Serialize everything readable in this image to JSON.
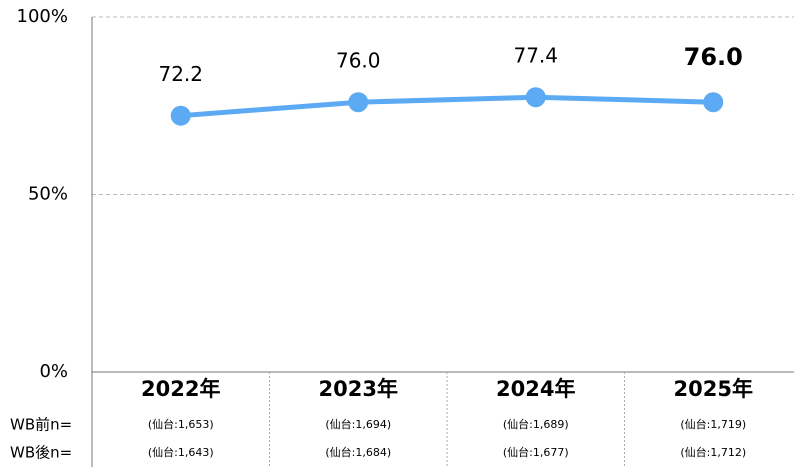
{
  "chart_data": {
    "type": "line",
    "categories": [
      "2022年",
      "2023年",
      "2024年",
      "2025年"
    ],
    "series": [
      {
        "color": "#5caaf3",
        "values": [
          72.2,
          76.0,
          77.4,
          76.0
        ],
        "value_labels": [
          "72.2",
          "76.0",
          "77.4",
          "76.0"
        ]
      }
    ],
    "ylim": [
      0,
      100
    ],
    "yticks": [
      {
        "value": 0,
        "label": "0%"
      },
      {
        "value": 50,
        "label": "50%"
      },
      {
        "value": 100,
        "label": "100%"
      }
    ],
    "grid": true
  },
  "table": {
    "rows": [
      {
        "label": "WB前n=",
        "cells": [
          "(仙台:1,653)",
          "(仙台:1,694)",
          "(仙台:1,689)",
          "(仙台:1,719)"
        ]
      },
      {
        "label": "WB後n=",
        "cells": [
          "(仙台:1,643)",
          "(仙台:1,684)",
          "(仙台:1,677)",
          "(仙台:1,712)"
        ]
      }
    ]
  }
}
